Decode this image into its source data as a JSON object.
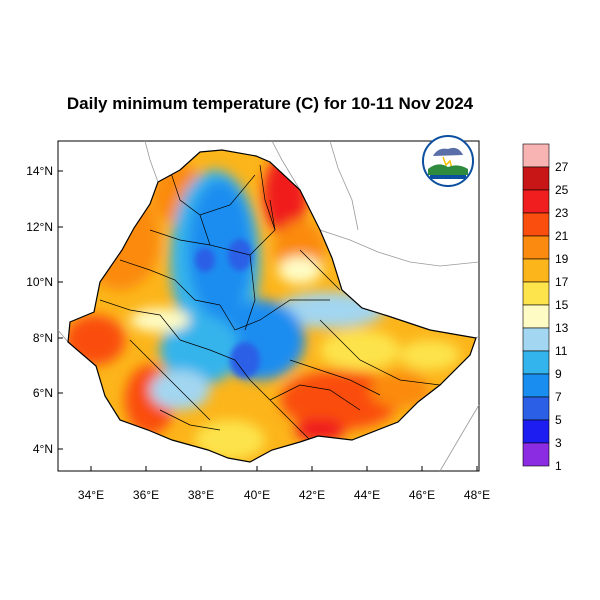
{
  "title": "Daily minimum temperature (C) for 10-11 Nov 2024",
  "map": {
    "x_ticks": [
      "34°E",
      "36°E",
      "38°E",
      "40°E",
      "42°E",
      "44°E",
      "46°E",
      "48°E"
    ],
    "y_ticks": [
      "14°N",
      "12°N",
      "10°N",
      "8°N",
      "6°N",
      "4°N"
    ],
    "lon_range": [
      33,
      48.2
    ],
    "lat_range": [
      3.2,
      15
    ]
  },
  "legend": {
    "labels": [
      "27",
      "25",
      "23",
      "21",
      "19",
      "17",
      "15",
      "13",
      "11",
      "9",
      "7",
      "5",
      "3",
      "1"
    ],
    "colors": [
      "#f8b3b3",
      "#c81616",
      "#f01e1e",
      "#fa4e0f",
      "#fb8a10",
      "#fcb51a",
      "#fde34c",
      "#fefcc4",
      "#a3d6f0",
      "#34b4ec",
      "#1a8df0",
      "#2a5fe6",
      "#1d1df2",
      "#8b2be2"
    ]
  },
  "logo": {
    "name": "ethiopian-meteorology-institute-logo"
  }
}
